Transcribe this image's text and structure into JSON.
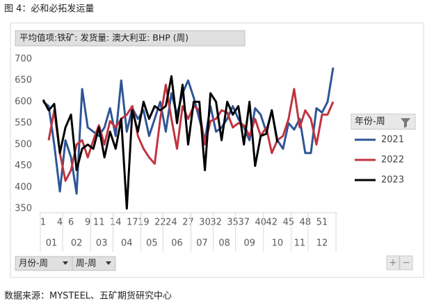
{
  "caption": "图 4：必和必拓发运量",
  "source": "数据来源：MYSTEEL、五矿期货研究中心",
  "chart_data": {
    "type": "line",
    "field_button": "平均值项:铁矿: 发货量: 澳大利亚: BHP (周)",
    "legend_title": "年份-周",
    "legend": "right",
    "grid": false,
    "axis_buttons": [
      "月份-周",
      "周-周"
    ],
    "categories": [
      "1",
      null,
      null,
      "4",
      null,
      "6",
      null,
      null,
      "9",
      null,
      "11",
      null,
      null,
      "14",
      null,
      null,
      "17",
      null,
      "19",
      null,
      null,
      "22",
      null,
      "24",
      null,
      null,
      "27",
      null,
      null,
      "30",
      null,
      "32",
      null,
      null,
      "35",
      null,
      "37",
      null,
      null,
      "40",
      null,
      "42",
      null,
      null,
      "45",
      null,
      null,
      "48",
      null,
      null,
      "51",
      null,
      null
    ],
    "x_groups": [
      {
        "label": "01",
        "count": 4
      },
      {
        "label": "02",
        "count": 5
      },
      {
        "label": "03",
        "count": 4
      },
      {
        "label": "04",
        "count": 5
      },
      {
        "label": "05",
        "count": 4
      },
      {
        "label": "06",
        "count": 5
      },
      {
        "label": "07",
        "count": 4
      },
      {
        "label": "08",
        "count": 4
      },
      {
        "label": "09",
        "count": 5
      },
      {
        "label": "10",
        "count": 5
      },
      {
        "label": "11",
        "count": 3
      },
      {
        "label": "12",
        "count": 5
      }
    ],
    "ylim": [
      350,
      700
    ],
    "yticks": [
      350,
      400,
      450,
      500,
      550,
      600,
      650,
      700
    ],
    "series": [
      {
        "name": "2021",
        "color": "#2f5597",
        "values": [
          600,
          590,
          500,
          390,
          510,
          470,
          385,
          630,
          540,
          530,
          520,
          540,
          585,
          520,
          650,
          530,
          585,
          560,
          580,
          520,
          560,
          600,
          530,
          620,
          570,
          620,
          650,
          610,
          560,
          510,
          590,
          530,
          540,
          560,
          590,
          560,
          540,
          510,
          585,
          570,
          530,
          580,
          510,
          490,
          550,
          535,
          560,
          480,
          480,
          585,
          575,
          600,
          680
        ]
      },
      {
        "name": "2022",
        "color": "#c0343f",
        "values": [
          null,
          510,
          580,
          480,
          415,
          440,
          500,
          510,
          470,
          510,
          545,
          500,
          555,
          540,
          560,
          570,
          590,
          520,
          490,
          470,
          455,
          560,
          640,
          560,
          490,
          590,
          560,
          590,
          580,
          500,
          555,
          560,
          580,
          575,
          540,
          550,
          545,
          520,
          560,
          520,
          540,
          480,
          510,
          520,
          560,
          630,
          540,
          580,
          560,
          500,
          570,
          570,
          600
        ]
      },
      {
        "name": "2023",
        "color": "#000000",
        "values": [
          605,
          580,
          595,
          480,
          540,
          570,
          440,
          490,
          500,
          490,
          540,
          470,
          530,
          490,
          560,
          350,
          580,
          530,
          600,
          560,
          590,
          580,
          590,
          660,
          550,
          640,
          500,
          600,
          600,
          440,
          620,
          600,
          510,
          600,
          570,
          590,
          500,
          600,
          450,
          520,
          525,
          580,
          505,
          null,
          null,
          null,
          null,
          null,
          null,
          null,
          null,
          null,
          null
        ]
      }
    ]
  }
}
